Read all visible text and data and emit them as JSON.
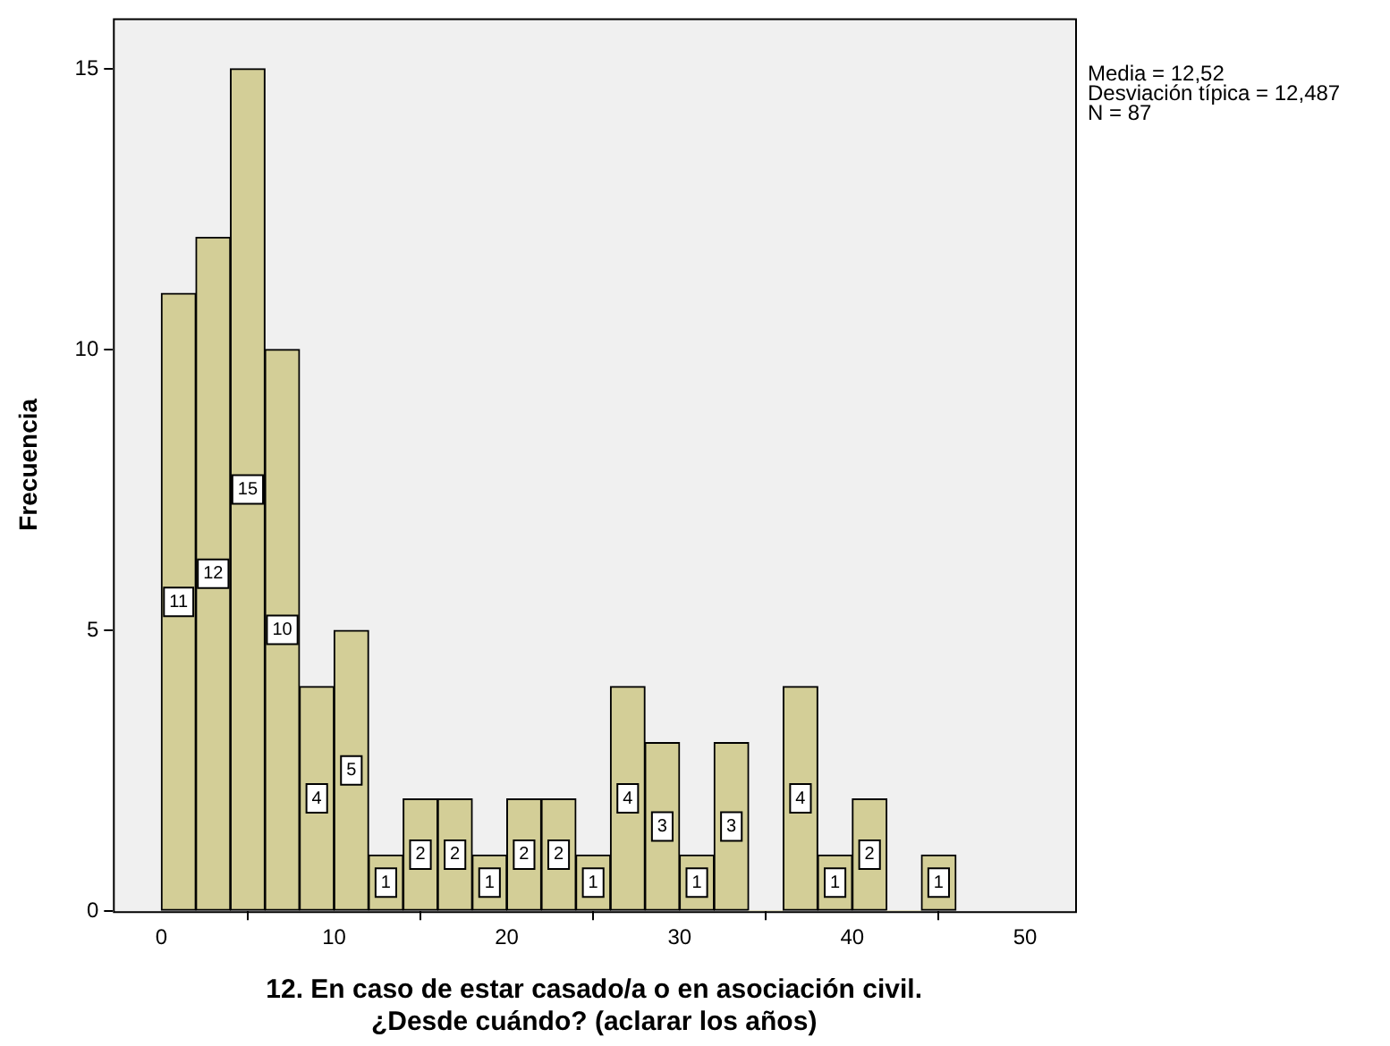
{
  "chart_data": {
    "type": "histogram",
    "xlabel": "12. En caso de estar casado/a o en asociación civil.\n¿Desde cuándo? (aclarar los años)",
    "ylabel": "Frecuencia",
    "bins": [
      0,
      2,
      4,
      6,
      8,
      10,
      12,
      14,
      16,
      18,
      20,
      22,
      24,
      26,
      28,
      30,
      32,
      34,
      36,
      38,
      40,
      42,
      44,
      46
    ],
    "values": [
      11,
      12,
      15,
      10,
      4,
      5,
      1,
      2,
      2,
      1,
      2,
      2,
      1,
      4,
      3,
      1,
      3,
      0,
      4,
      1,
      2,
      0,
      1
    ],
    "color": "#d3ce97",
    "xlim": [
      -2.8,
      52.9
    ],
    "xticks": [
      0,
      10,
      20,
      30,
      40,
      50
    ],
    "ylim": [
      0,
      15.9
    ],
    "yticks": [
      0,
      5,
      10,
      15
    ],
    "grid": false,
    "value_labels": [
      "11",
      "12",
      "15",
      "10",
      "4",
      "5",
      "1",
      "2",
      "2",
      "1",
      "2",
      "2",
      "1",
      "4",
      "3",
      "1",
      "3",
      null,
      "4",
      "1",
      "2",
      null,
      "1"
    ],
    "annotations": [
      "Media = 12,52",
      "Desviación típica = 12,487",
      "N = 87"
    ]
  }
}
